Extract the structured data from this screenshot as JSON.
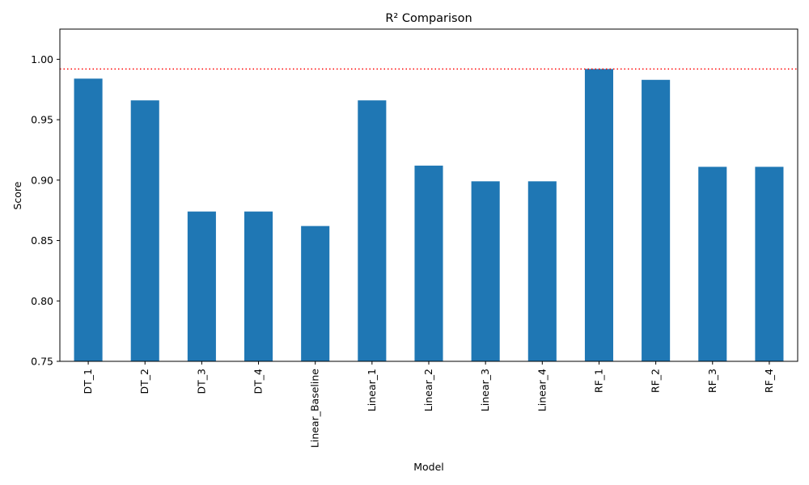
{
  "chart_data": {
    "type": "bar",
    "title": "R² Comparison",
    "xlabel": "Model",
    "ylabel": "Score",
    "ylim": [
      0.75,
      1.025
    ],
    "yticks": [
      "0.75",
      "0.80",
      "0.85",
      "0.90",
      "0.95",
      "1.00"
    ],
    "categories": [
      "DT_1",
      "DT_2",
      "DT_3",
      "DT_4",
      "Linear_Baseline",
      "Linear_1",
      "Linear_2",
      "Linear_3",
      "Linear_4",
      "RF_1",
      "RF_2",
      "RF_3",
      "RF_4"
    ],
    "values": [
      0.984,
      0.966,
      0.874,
      0.874,
      0.862,
      0.966,
      0.912,
      0.899,
      0.899,
      0.992,
      0.983,
      0.911,
      0.911
    ],
    "bar_color": "#1f77b4",
    "reference_line": {
      "value": 0.992,
      "color": "#ff0000",
      "style": "dotted"
    },
    "grid": false,
    "legend": false
  }
}
